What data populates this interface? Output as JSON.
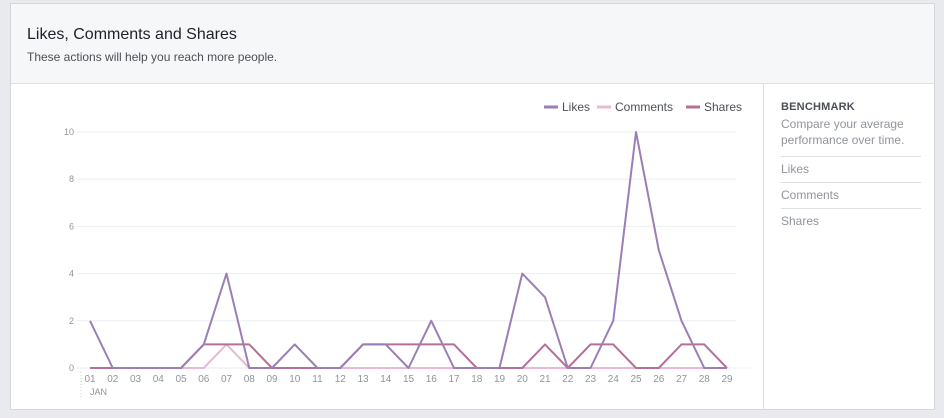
{
  "header": {
    "title": "Likes, Comments and Shares",
    "subtitle": "These actions will help you reach more people."
  },
  "sidebar": {
    "heading": "BENCHMARK",
    "description": "Compare your average performance over time.",
    "items": [
      {
        "label": "Likes"
      },
      {
        "label": "Comments"
      },
      {
        "label": "Shares"
      }
    ]
  },
  "colors": {
    "likes": "#9a7fb6",
    "comments": "#e8b9d2",
    "shares": "#b5709a"
  },
  "chart_data": {
    "type": "line",
    "x": [
      "01",
      "02",
      "03",
      "04",
      "05",
      "06",
      "07",
      "08",
      "09",
      "10",
      "11",
      "12",
      "13",
      "14",
      "15",
      "16",
      "17",
      "18",
      "19",
      "20",
      "21",
      "22",
      "23",
      "24",
      "25",
      "26",
      "27",
      "28",
      "29"
    ],
    "x_sublabel": "JAN",
    "ylim": [
      0,
      10
    ],
    "yticks": [
      0,
      2,
      4,
      6,
      8,
      10
    ],
    "grid": true,
    "legend_position": "top-right",
    "series": [
      {
        "name": "Likes",
        "color": "#9a7fb6",
        "values": [
          2,
          0,
          0,
          0,
          0,
          1,
          4,
          0,
          0,
          1,
          0,
          0,
          1,
          1,
          0,
          2,
          0,
          0,
          0,
          4,
          3,
          0,
          0,
          2,
          10,
          5,
          2,
          0,
          0
        ]
      },
      {
        "name": "Comments",
        "color": "#e8b9d2",
        "values": [
          0,
          0,
          0,
          0,
          0,
          0,
          1,
          0,
          0,
          0,
          0,
          0,
          0,
          0,
          0,
          0,
          0,
          0,
          0,
          0,
          0,
          0,
          0,
          0,
          0,
          0,
          0,
          0,
          0
        ]
      },
      {
        "name": "Shares",
        "color": "#b5709a",
        "values": [
          0,
          0,
          0,
          0,
          0,
          1,
          1,
          1,
          0,
          0,
          0,
          0,
          1,
          1,
          1,
          1,
          1,
          0,
          0,
          0,
          1,
          0,
          1,
          1,
          0,
          0,
          1,
          1,
          0
        ]
      }
    ]
  }
}
